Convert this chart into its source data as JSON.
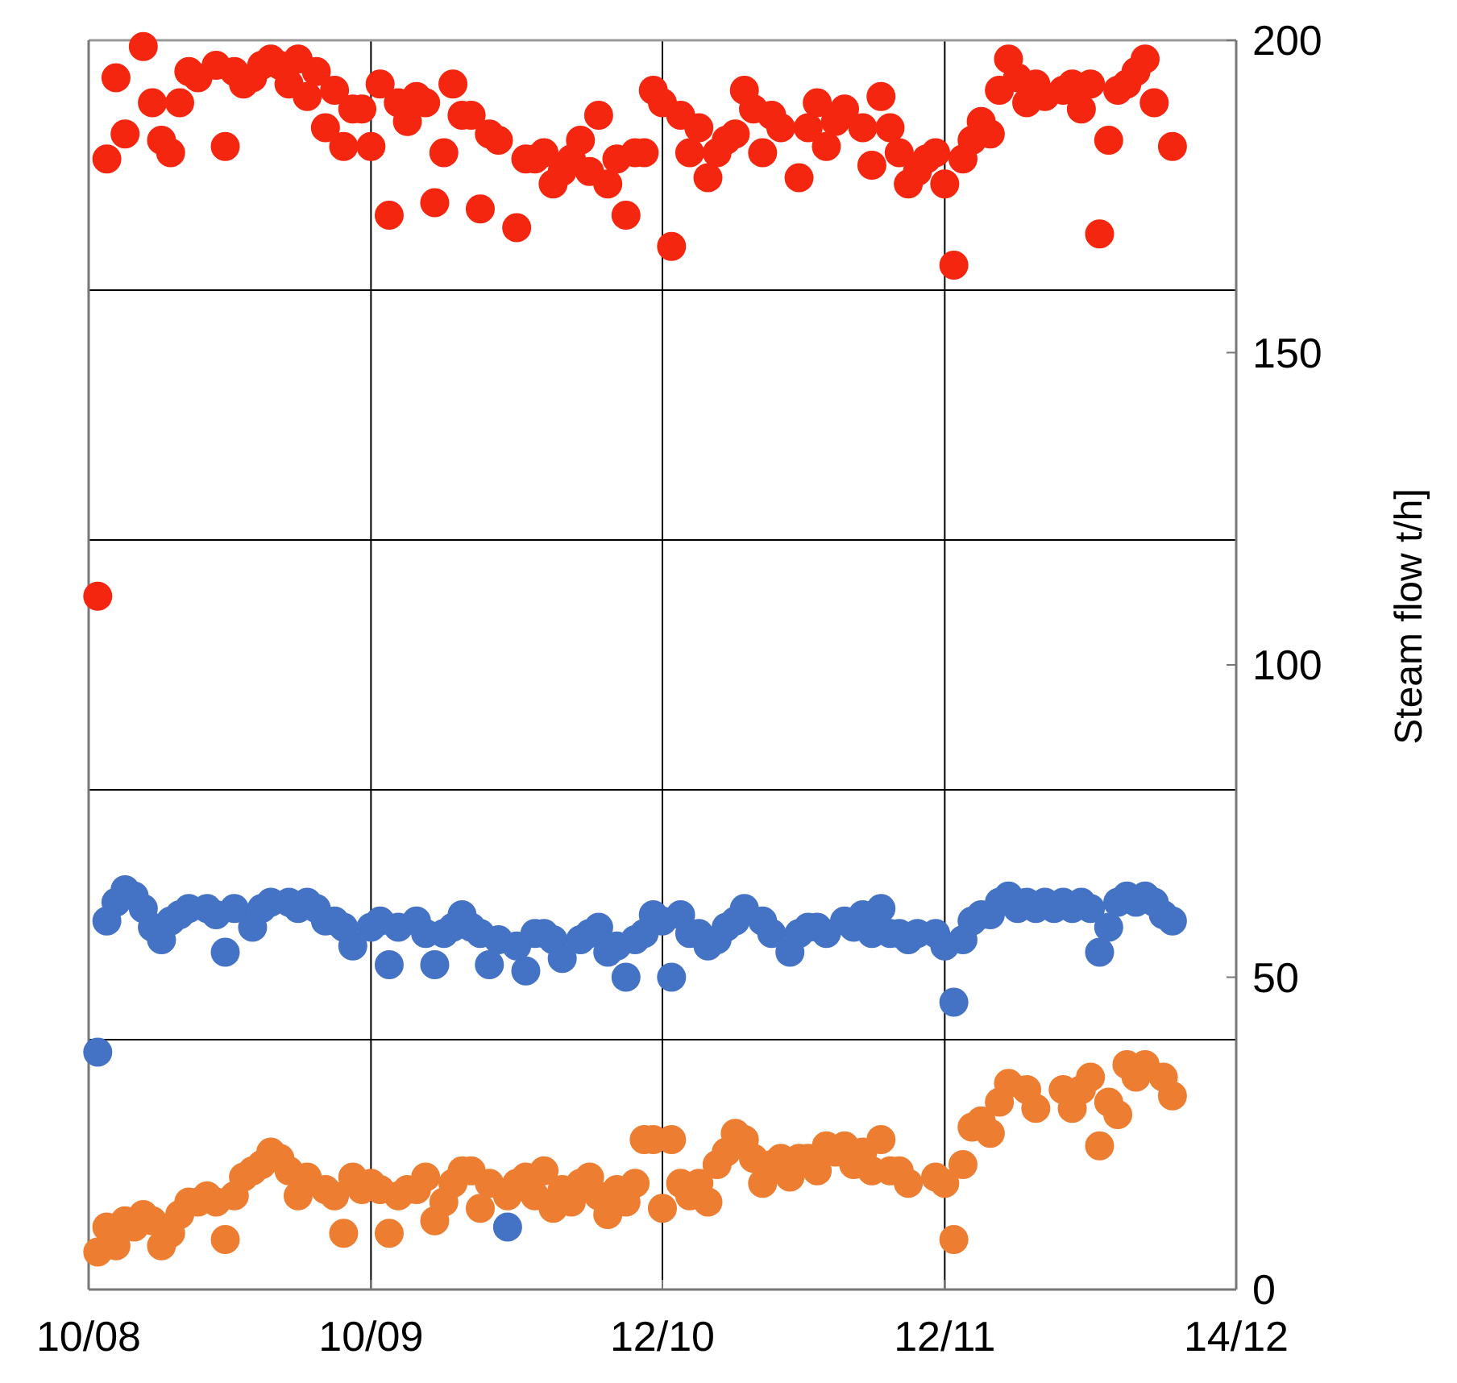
{
  "chart_data": {
    "type": "scatter",
    "ylabel": "Steam flow t/h]",
    "marker": "circle",
    "grid": true,
    "xlim": [
      "--08-10",
      "--12-14"
    ],
    "xticks": [
      {
        "value": "--08-10",
        "label": "10/08"
      },
      {
        "value": "--09-10",
        "label": "10/09"
      },
      {
        "value": "--10-12",
        "label": "12/10"
      },
      {
        "value": "--11-12",
        "label": "12/11"
      },
      {
        "value": "--12-14",
        "label": "14/12"
      }
    ],
    "ylim": [
      0,
      200
    ],
    "yticks": [
      0,
      {
        "value": 40,
        "label": null
      },
      50,
      {
        "value": 80,
        "label": null
      },
      100,
      {
        "value": 120,
        "label": null
      },
      150,
      {
        "value": 160,
        "label": null
      },
      200
    ],
    "x": [
      "--08-11",
      "--08-12",
      "--08-13",
      "--08-14",
      "--08-15",
      "--08-16",
      "--08-17",
      "--08-18",
      "--08-19",
      "--08-20",
      "--08-21",
      "--08-22",
      "--08-23",
      "--08-24",
      "--08-25",
      "--08-26",
      "--08-27",
      "--08-28",
      "--08-29",
      "--08-30",
      "--08-31",
      "--09-01",
      "--09-02",
      "--09-03",
      "--09-04",
      "--09-05",
      "--09-06",
      "--09-07",
      "--09-08",
      "--09-09",
      "--09-10",
      "--09-11",
      "--09-12",
      "--09-13",
      "--09-14",
      "--09-15",
      "--09-16",
      "--09-17",
      "--09-18",
      "--09-19",
      "--09-20",
      "--09-21",
      "--09-22",
      "--09-23",
      "--09-24",
      "--09-25",
      "--09-26",
      "--09-27",
      "--09-28",
      "--09-29",
      "--09-30",
      "--10-01",
      "--10-02",
      "--10-03",
      "--10-04",
      "--10-05",
      "--10-06",
      "--10-07",
      "--10-08",
      "--10-09",
      "--10-10",
      "--10-11",
      "--10-12",
      "--10-13",
      "--10-14",
      "--10-15",
      "--10-16",
      "--10-17",
      "--10-18",
      "--10-19",
      "--10-20",
      "--10-21",
      "--10-22",
      "--10-23",
      "--10-24",
      "--10-25",
      "--10-26",
      "--10-27",
      "--10-28",
      "--10-29",
      "--10-30",
      "--10-31",
      "--11-01",
      "--11-02",
      "--11-03",
      "--11-04",
      "--11-05",
      "--11-06",
      "--11-07",
      "--11-08",
      "--11-09",
      "--11-10",
      "--11-11",
      "--11-12",
      "--11-13",
      "--11-14",
      "--11-15",
      "--11-16",
      "--11-17",
      "--11-18",
      "--11-19",
      "--11-20",
      "--11-21",
      "--11-22",
      "--11-23",
      "--11-24",
      "--11-25",
      "--11-26",
      "--11-27",
      "--11-28",
      "--11-29",
      "--11-30",
      "--12-01",
      "--12-02",
      "--12-03",
      "--12-04",
      "--12-05",
      "--12-06",
      "--12-07"
    ],
    "series": [
      {
        "color": "#f5260f",
        "values": [
          111,
          181,
          194,
          185,
          null,
          199,
          190,
          184,
          182,
          190,
          195,
          194,
          null,
          196,
          183,
          195,
          193,
          194,
          196,
          197,
          196,
          193,
          197,
          191,
          195,
          186,
          192,
          183,
          189,
          189,
          183,
          193,
          172,
          190,
          187,
          191,
          190,
          174,
          182,
          193,
          188,
          188,
          173,
          185,
          184,
          null,
          170,
          181,
          181,
          182,
          177,
          179,
          181,
          184,
          179,
          188,
          177,
          181,
          172,
          182,
          182,
          192,
          190,
          167,
          188,
          182,
          186,
          178,
          182,
          184,
          185,
          192,
          189,
          182,
          188,
          186,
          null,
          178,
          186,
          190,
          183,
          187,
          189,
          null,
          186,
          180,
          191,
          186,
          182,
          177,
          179,
          181,
          182,
          177,
          164,
          181,
          184,
          187,
          185,
          192,
          197,
          194,
          190,
          193,
          191,
          null,
          192,
          193,
          189,
          193,
          169,
          184,
          192,
          193,
          195,
          197,
          190,
          null,
          183
        ]
      },
      {
        "color": "#4472c4",
        "values": [
          38,
          59,
          62,
          64,
          63,
          61,
          58,
          56,
          59,
          60,
          61,
          null,
          61,
          60,
          54,
          61,
          null,
          58,
          61,
          62,
          null,
          62,
          61,
          62,
          61,
          59,
          59,
          58,
          55,
          null,
          58,
          59,
          52,
          58,
          null,
          59,
          57,
          52,
          57,
          58,
          60,
          58,
          57,
          52,
          56,
          10,
          55,
          51,
          57,
          57,
          56,
          53,
          null,
          56,
          57,
          58,
          54,
          55,
          50,
          56,
          57,
          60,
          59,
          50,
          60,
          57,
          57,
          55,
          56,
          58,
          59,
          61,
          null,
          59,
          57,
          null,
          54,
          57,
          58,
          58,
          57,
          null,
          59,
          58,
          60,
          57,
          61,
          57,
          57,
          56,
          57,
          null,
          57,
          55,
          46,
          56,
          59,
          60,
          60,
          62,
          63,
          61,
          62,
          61,
          62,
          61,
          62,
          61,
          62,
          61,
          54,
          58,
          62,
          63,
          62,
          63,
          62,
          60,
          59
        ]
      },
      {
        "color": "#ed7d31",
        "values": [
          6,
          10,
          7,
          11,
          10,
          12,
          11,
          7,
          9,
          12,
          14,
          14,
          15,
          14,
          8,
          15,
          18,
          19,
          20,
          22,
          21,
          19,
          15,
          18,
          null,
          16,
          15,
          9,
          18,
          16,
          17,
          16,
          9,
          15,
          16,
          16,
          18,
          11,
          14,
          17,
          19,
          19,
          13,
          17,
          null,
          15,
          17,
          18,
          15,
          19,
          13,
          16,
          14,
          17,
          18,
          15,
          12,
          16,
          14,
          17,
          24,
          24,
          13,
          24,
          17,
          15,
          17,
          14,
          20,
          22,
          25,
          24,
          21,
          17,
          20,
          21,
          18,
          21,
          21,
          19,
          23,
          22,
          23,
          20,
          22,
          19,
          24,
          19,
          19,
          17,
          null,
          null,
          18,
          17,
          8,
          20,
          26,
          27,
          25,
          30,
          33,
          null,
          32,
          29,
          null,
          null,
          32,
          29,
          32,
          34,
          23,
          30,
          28,
          36,
          34,
          36,
          null,
          34,
          31
        ]
      }
    ]
  }
}
